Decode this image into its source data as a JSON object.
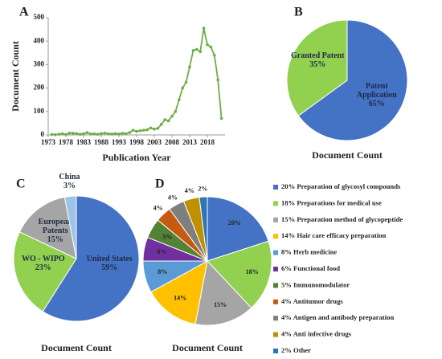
{
  "chart_data": [
    {
      "type": "line",
      "label": "A",
      "xlabel": "Publication Year",
      "ylabel": "Document Count",
      "color": "#70ad47",
      "x": [
        1974,
        1975,
        1976,
        1977,
        1978,
        1979,
        1980,
        1981,
        1982,
        1983,
        1984,
        1985,
        1986,
        1987,
        1988,
        1989,
        1990,
        1991,
        1992,
        1993,
        1994,
        1995,
        1996,
        1997,
        1998,
        1999,
        2000,
        2001,
        2002,
        2003,
        2004,
        2005,
        2006,
        2007,
        2008,
        2009,
        2010,
        2011,
        2012,
        2013,
        2014,
        2015,
        2016,
        2017,
        2018,
        2019,
        2020,
        2021,
        2022
      ],
      "values": [
        2,
        1,
        3,
        5,
        2,
        8,
        7,
        6,
        3,
        5,
        10,
        4,
        5,
        3,
        6,
        8,
        5,
        4,
        6,
        4,
        7,
        5,
        10,
        20,
        15,
        18,
        20,
        22,
        30,
        25,
        28,
        45,
        65,
        60,
        80,
        100,
        150,
        200,
        225,
        290,
        360,
        365,
        355,
        455,
        385,
        375,
        340,
        235,
        70
      ],
      "xlim": [
        1973,
        2023
      ],
      "xticks": [
        1973,
        1978,
        1983,
        1988,
        1993,
        1998,
        2003,
        2008,
        2013,
        2018
      ],
      "ylim": [
        0,
        500
      ],
      "yticks": [
        0,
        100,
        200,
        300,
        400,
        500
      ]
    },
    {
      "type": "pie",
      "label": "B",
      "title": "Document Count",
      "categories": [
        "Patent Application",
        "Granted Patent"
      ],
      "values": [
        65,
        35
      ],
      "value_labels": [
        "65%",
        "35%"
      ],
      "colors": [
        "#4472c4",
        "#92d050"
      ]
    },
    {
      "type": "pie",
      "label": "C",
      "title": "Document Count",
      "categories": [
        "United States",
        "WO - WIPO",
        "European Patents",
        "China"
      ],
      "values": [
        59,
        23,
        15,
        3
      ],
      "value_labels": [
        "59%",
        "23%",
        "15%",
        "3%"
      ],
      "colors": [
        "#4472c4",
        "#92d050",
        "#a5a5a5",
        "#9dc3e6"
      ]
    },
    {
      "type": "pie",
      "label": "D",
      "title": "Document Count",
      "legend": "right",
      "categories": [
        "Preparation of glycosyl compounds",
        "Preparations for medical use",
        "Preparation method of glycopeptide",
        "Hair care efficacy preparation",
        "Herb medicine",
        "Functional food",
        "Immunomodulator",
        "Antitumor drugs",
        "Antigen and antibody preparation",
        "Anti infective drugs",
        "Other"
      ],
      "values": [
        20,
        18,
        15,
        14,
        8,
        6,
        5,
        4,
        4,
        4,
        2
      ],
      "value_labels": [
        "20%",
        "18%",
        "15%",
        "14%",
        "8%",
        "6%",
        "5%",
        "4%",
        "4%",
        "4%",
        "2%"
      ],
      "colors": [
        "#4472c4",
        "#92d050",
        "#a5a5a5",
        "#ffc000",
        "#5b9bd5",
        "#7030a0",
        "#548235",
        "#c55a11",
        "#7f7f7f",
        "#bf9000",
        "#2e75b6"
      ]
    }
  ]
}
